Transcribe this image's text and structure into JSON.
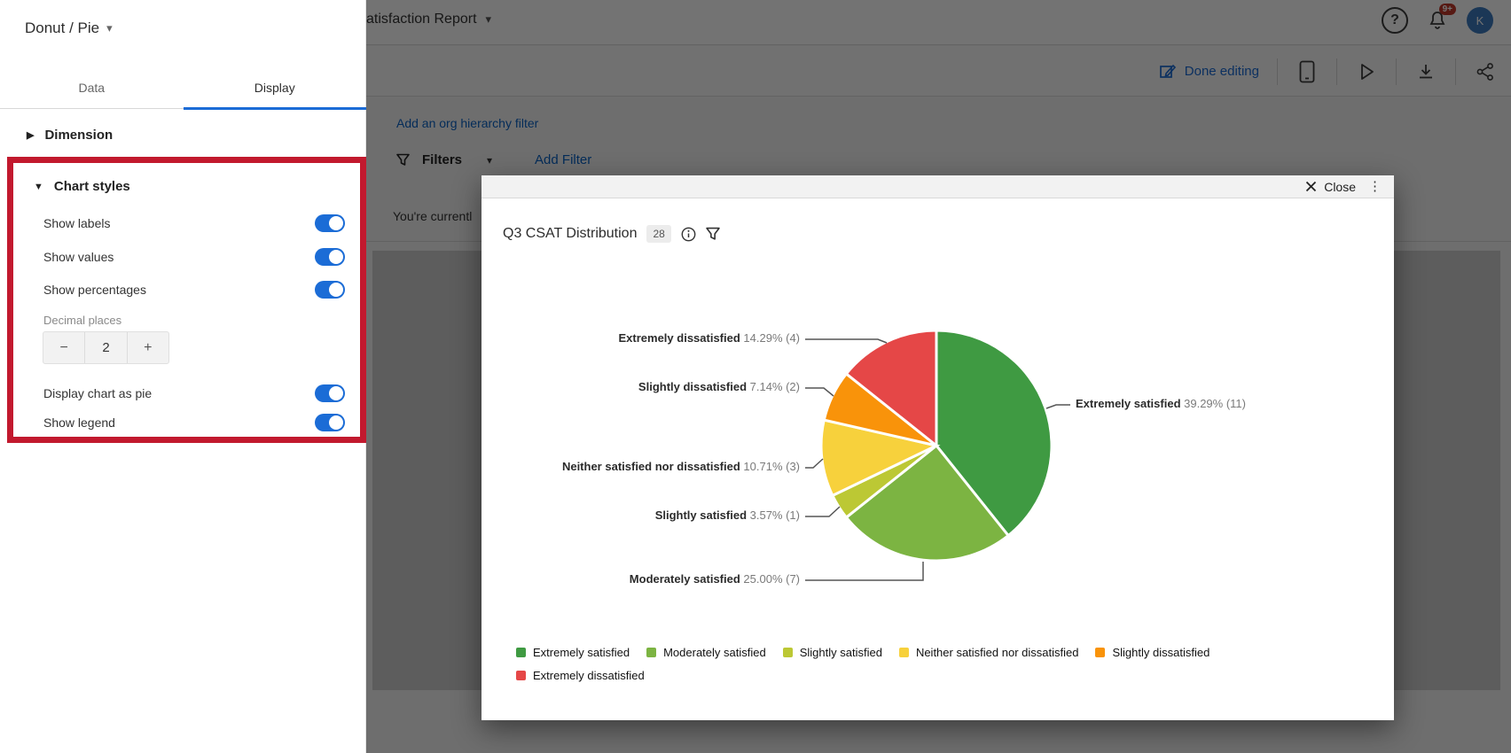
{
  "panel": {
    "title": "Donut / Pie",
    "tabs": [
      {
        "label": "Data",
        "active": false
      },
      {
        "label": "Display",
        "active": true
      }
    ],
    "dimension_section": {
      "label": "Dimension"
    },
    "chart_styles": {
      "label": "Chart styles",
      "toggles_top": [
        {
          "label": "Show labels",
          "on": true
        },
        {
          "label": "Show values",
          "on": true
        },
        {
          "label": "Show percentages",
          "on": true
        }
      ],
      "decimal": {
        "label": "Decimal places",
        "value": "2",
        "minus": "−",
        "plus": "+"
      },
      "toggles_bottom": [
        {
          "label": "Display chart as pie",
          "on": true
        },
        {
          "label": "Show legend",
          "on": true
        }
      ]
    }
  },
  "topbar": {
    "report_title": "atisfaction Report",
    "notification_badge": "9+",
    "avatar_initial": "K"
  },
  "toolbar": {
    "done_editing": "Done editing"
  },
  "filters_bar": {
    "org_filter_link": "Add an org hierarchy filter",
    "filters_label": "Filters",
    "add_filter_link": "Add Filter",
    "background_text": "You're currentl"
  },
  "modal": {
    "close_label": "Close",
    "widget_title": "Q3 CSAT Distribution",
    "widget_count": "28"
  },
  "chart_data": {
    "type": "pie",
    "title": "Q3 CSAT Distribution",
    "total": 28,
    "legend_position": "bottom",
    "slices": [
      {
        "label": "Extremely satisfied",
        "value": 11,
        "percent": "39.29%",
        "color": "#3F9A42"
      },
      {
        "label": "Moderately satisfied",
        "value": 7,
        "percent": "25.00%",
        "color": "#7CB442"
      },
      {
        "label": "Slightly satisfied",
        "value": 1,
        "percent": "3.57%",
        "color": "#BCC834"
      },
      {
        "label": "Neither satisfied nor dissatisfied",
        "value": 3,
        "percent": "10.71%",
        "color": "#F7D13C"
      },
      {
        "label": "Slightly dissatisfied",
        "value": 2,
        "percent": "7.14%",
        "color": "#F9930A"
      },
      {
        "label": "Extremely dissatisfied",
        "value": 4,
        "percent": "14.29%",
        "color": "#E54747"
      }
    ]
  }
}
